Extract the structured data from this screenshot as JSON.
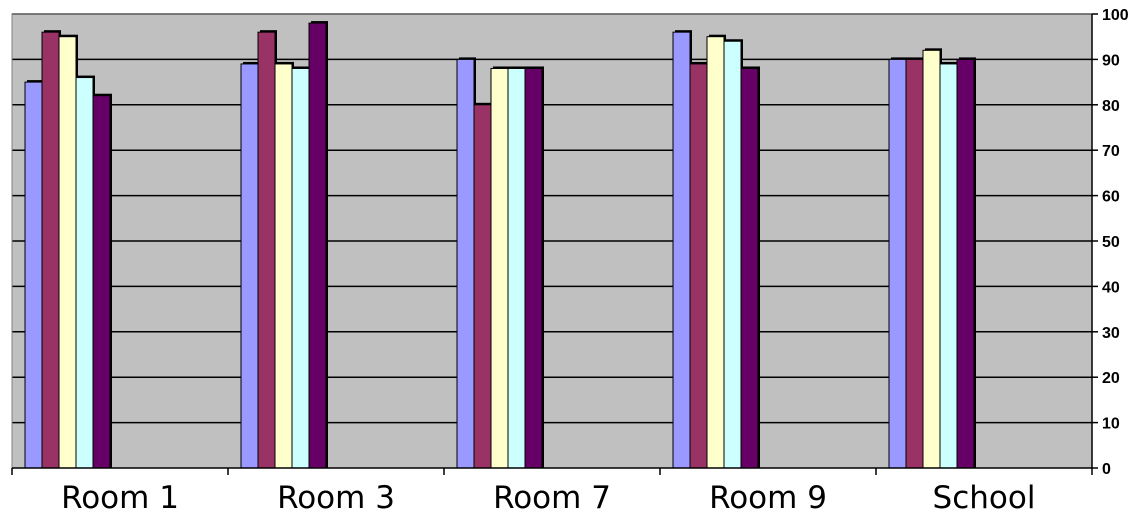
{
  "chart_data": {
    "type": "bar",
    "title": "",
    "xlabel": "",
    "ylabel": "",
    "ylim": [
      0,
      100
    ],
    "yticks": [
      0,
      10,
      20,
      30,
      40,
      50,
      60,
      70,
      80,
      90,
      100
    ],
    "y_axis_side": "right",
    "grid": true,
    "legend": "none",
    "plot_background": "#c0c0c0",
    "categories": [
      "Room 1",
      "Room 3",
      "Room 7",
      "Room 9",
      "School"
    ],
    "series": [
      {
        "color": "#9999ff",
        "values": [
          85,
          89,
          90,
          96,
          90
        ]
      },
      {
        "color": "#993366",
        "values": [
          96,
          96,
          80,
          89,
          90
        ]
      },
      {
        "color": "#ffffcc",
        "values": [
          95,
          89,
          88,
          95,
          92
        ]
      },
      {
        "color": "#ccffff",
        "values": [
          86,
          88,
          88,
          94,
          89
        ]
      },
      {
        "color": "#660066",
        "values": [
          82,
          98,
          88,
          88,
          90
        ]
      }
    ]
  }
}
